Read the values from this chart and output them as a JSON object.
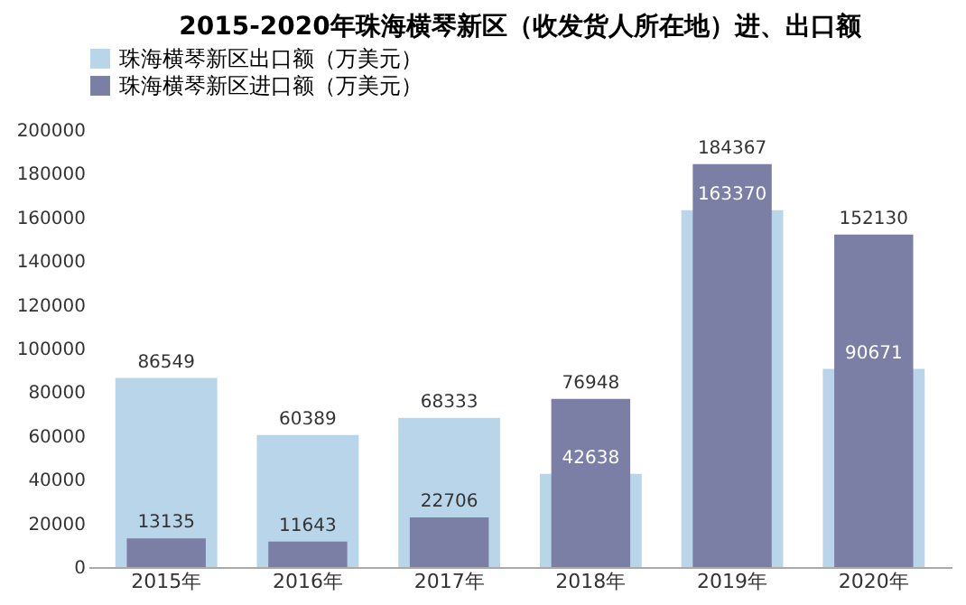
{
  "chart_data": {
    "type": "bar",
    "title": "2015-2020年珠海横琴新区（收发货人所在地）进、出口额",
    "categories": [
      "2015年",
      "2016年",
      "2017年",
      "2018年",
      "2019年",
      "2020年"
    ],
    "series": [
      {
        "name": "珠海横琴新区出口额（万美元）",
        "color": "#b9d5ea",
        "values": [
          86549,
          60389,
          68333,
          42638,
          163370,
          90671
        ]
      },
      {
        "name": "珠海横琴新区进口额（万美元）",
        "color": "#7b7fa5",
        "values": [
          13135,
          11643,
          22706,
          76948,
          184367,
          152130
        ]
      }
    ],
    "ylim": [
      0,
      200000
    ],
    "yticks": [
      0,
      20000,
      40000,
      60000,
      80000,
      100000,
      120000,
      140000,
      160000,
      180000,
      200000
    ],
    "grid": false,
    "legend": "top",
    "data_labels": true
  }
}
